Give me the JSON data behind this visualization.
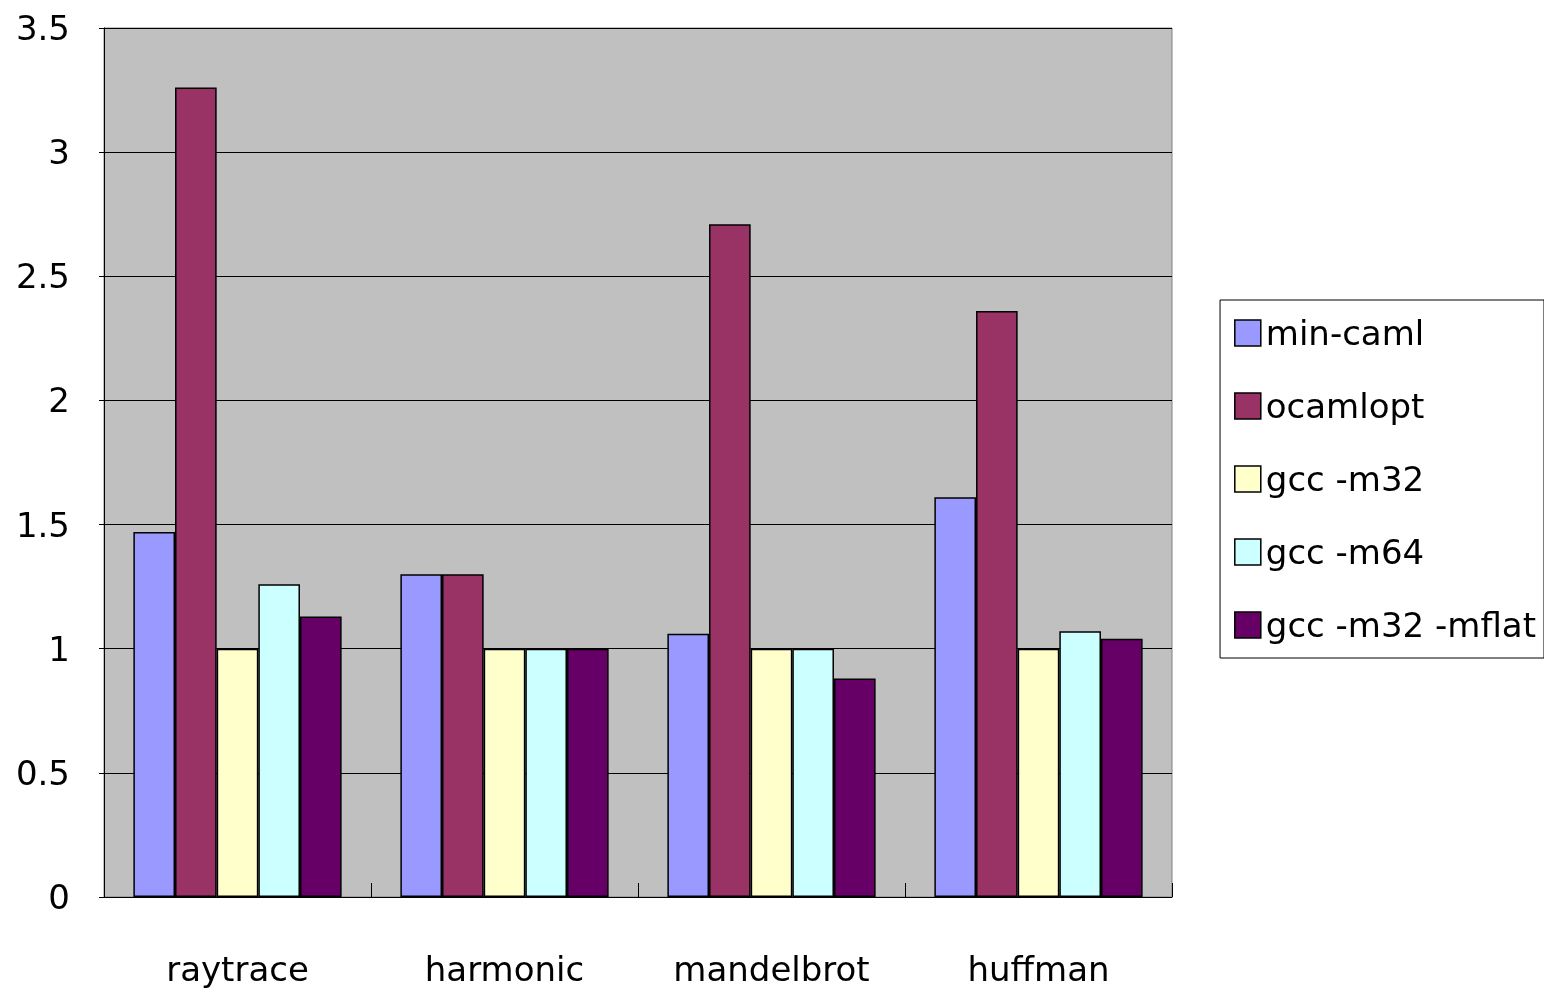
{
  "chart_data": {
    "type": "bar",
    "categories": [
      "raytrace",
      "harmonic",
      "mandelbrot",
      "huffman"
    ],
    "series": [
      {
        "name": "min-caml",
        "color": "#9999ff",
        "values": [
          1.47,
          1.3,
          1.06,
          1.61
        ]
      },
      {
        "name": "ocamlopt",
        "color": "#993366",
        "values": [
          3.26,
          1.3,
          2.71,
          2.36
        ]
      },
      {
        "name": "gcc -m32",
        "color": "#ffffcc",
        "values": [
          1,
          1,
          1,
          1
        ]
      },
      {
        "name": "gcc -m64",
        "color": "#ccffff",
        "values": [
          1.26,
          1,
          1,
          1.07
        ]
      },
      {
        "name": "gcc -m32 -mflat",
        "color": "#660066",
        "values": [
          1.13,
          1,
          0.88,
          1.04
        ]
      }
    ],
    "ylim": [
      0,
      3.5
    ],
    "yticks": [
      0,
      0.5,
      1,
      1.5,
      2,
      2.5,
      3,
      3.5
    ],
    "grid": "y",
    "legend": "right"
  }
}
